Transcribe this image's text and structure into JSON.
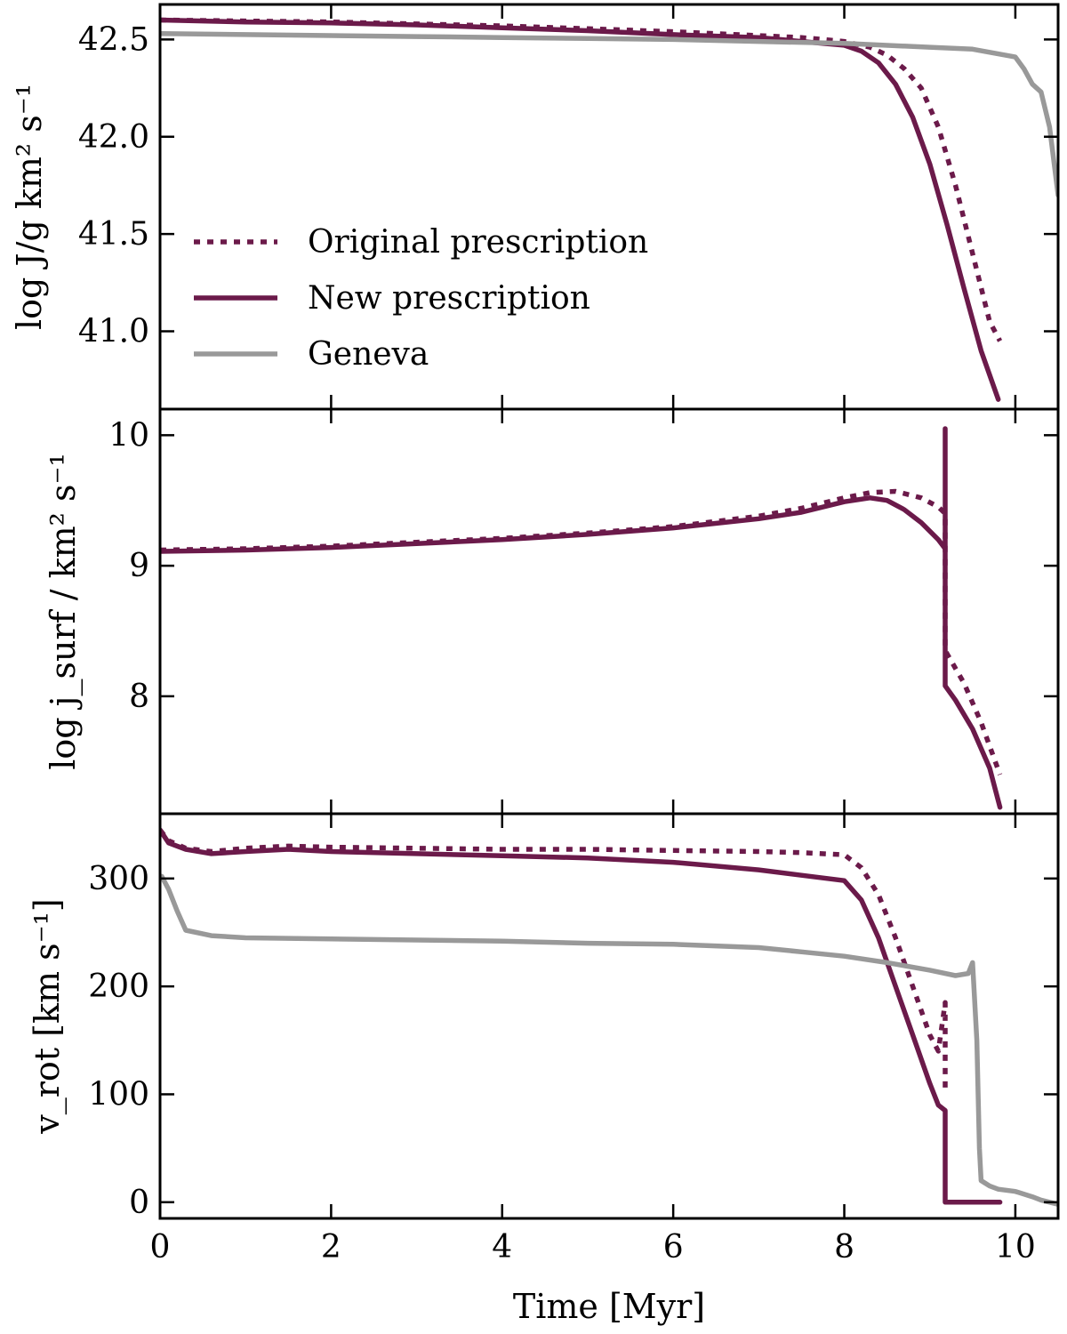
{
  "colors": {
    "purple": "#6b1a4a",
    "gray": "#999999",
    "frame": "#000000"
  },
  "chart_data": [
    {
      "type": "line",
      "ylabel": "log J/g km² s⁻¹",
      "xlim": [
        0,
        10.5
      ],
      "ylim": [
        40.6,
        42.68
      ],
      "yticks": [
        41.0,
        41.5,
        42.0,
        42.5
      ],
      "ytick_labels": [
        "41.0",
        "41.5",
        "42.0",
        "42.5"
      ],
      "legend": {
        "position": "center-left",
        "entries": [
          {
            "label": "Original prescription",
            "style": "dotted",
            "color": "#6b1a4a"
          },
          {
            "label": "New prescription",
            "style": "solid",
            "color": "#6b1a4a"
          },
          {
            "label": "Geneva",
            "style": "solid",
            "color": "#999999"
          }
        ]
      },
      "series": [
        {
          "name": "Original prescription",
          "style": "dotted",
          "color": "#6b1a4a",
          "x": [
            0,
            1,
            2,
            3,
            4,
            5,
            6,
            7,
            7.5,
            8.0,
            8.3,
            8.5,
            8.7,
            8.9,
            9.1,
            9.3,
            9.5,
            9.7,
            9.82
          ],
          "y": [
            42.6,
            42.595,
            42.59,
            42.58,
            42.57,
            42.555,
            42.54,
            42.52,
            42.51,
            42.49,
            42.46,
            42.42,
            42.35,
            42.25,
            42.05,
            41.75,
            41.4,
            41.05,
            40.95
          ]
        },
        {
          "name": "New prescription",
          "style": "solid",
          "color": "#6b1a4a",
          "x": [
            0,
            1,
            2,
            3,
            4,
            5,
            6,
            7,
            7.5,
            8.0,
            8.2,
            8.4,
            8.6,
            8.8,
            9.0,
            9.2,
            9.4,
            9.6,
            9.8
          ],
          "y": [
            42.6,
            42.59,
            42.585,
            42.575,
            42.56,
            42.545,
            42.525,
            42.51,
            42.49,
            42.47,
            42.44,
            42.38,
            42.27,
            42.1,
            41.86,
            41.55,
            41.22,
            40.9,
            40.65
          ]
        },
        {
          "name": "Geneva",
          "style": "solid",
          "color": "#999999",
          "x": [
            0,
            1,
            2,
            3,
            4,
            5,
            6,
            7,
            8,
            9,
            9.5,
            10.0,
            10.1,
            10.2,
            10.3,
            10.4,
            10.5
          ],
          "y": [
            42.53,
            42.525,
            42.52,
            42.515,
            42.51,
            42.505,
            42.5,
            42.49,
            42.48,
            42.46,
            42.45,
            42.41,
            42.35,
            42.27,
            42.23,
            42.05,
            41.7
          ]
        }
      ]
    },
    {
      "type": "line",
      "ylabel": "log j_surf / km² s⁻¹",
      "xlim": [
        0,
        10.5
      ],
      "ylim": [
        7.1,
        10.2
      ],
      "yticks": [
        8,
        9,
        10
      ],
      "ytick_labels": [
        "8",
        "9",
        "10"
      ],
      "series": [
        {
          "name": "Original prescription",
          "style": "dotted",
          "color": "#6b1a4a",
          "x": [
            0,
            1,
            2,
            3,
            4,
            5,
            6,
            7,
            7.5,
            8.0,
            8.3,
            8.6,
            8.9,
            9.1,
            9.18,
            9.18,
            9.4,
            9.6,
            9.82
          ],
          "y": [
            9.12,
            9.13,
            9.15,
            9.18,
            9.21,
            9.25,
            9.3,
            9.38,
            9.44,
            9.52,
            9.56,
            9.57,
            9.52,
            9.45,
            9.4,
            8.35,
            8.1,
            7.8,
            7.4
          ]
        },
        {
          "name": "New prescription",
          "style": "solid",
          "color": "#6b1a4a",
          "x": [
            0,
            1,
            2,
            3,
            4,
            5,
            6,
            7,
            7.5,
            8.0,
            8.3,
            8.5,
            8.7,
            8.9,
            9.1,
            9.18,
            9.18,
            9.18,
            9.18,
            9.3,
            9.5,
            9.7,
            9.82
          ],
          "y": [
            9.11,
            9.12,
            9.14,
            9.17,
            9.2,
            9.24,
            9.29,
            9.36,
            9.41,
            9.49,
            9.52,
            9.5,
            9.43,
            9.33,
            9.2,
            9.13,
            10.05,
            10.05,
            8.08,
            7.97,
            7.75,
            7.45,
            7.15
          ]
        }
      ]
    },
    {
      "type": "line",
      "ylabel": "v_rot [km s⁻¹]",
      "xlabel": "Time [Myr]",
      "xlim": [
        0,
        10.5
      ],
      "xticks": [
        0,
        2,
        4,
        6,
        8,
        10
      ],
      "xtick_labels": [
        "0",
        "2",
        "4",
        "6",
        "8",
        "10"
      ],
      "ylim": [
        -15,
        360
      ],
      "yticks": [
        0,
        100,
        200,
        300
      ],
      "ytick_labels": [
        "0",
        "100",
        "200",
        "300"
      ],
      "series": [
        {
          "name": "Original prescription",
          "style": "dotted",
          "color": "#6b1a4a",
          "x": [
            0,
            0.1,
            0.3,
            0.6,
            1.0,
            1.5,
            2,
            3,
            4,
            5,
            6,
            7,
            7.5,
            8.0,
            8.2,
            8.4,
            8.6,
            8.8,
            9.0,
            9.1,
            9.18,
            9.18
          ],
          "y": [
            345,
            335,
            328,
            325,
            328,
            330,
            329,
            328,
            327,
            327,
            326,
            325,
            324,
            322,
            310,
            285,
            245,
            200,
            155,
            140,
            185,
            100
          ]
        },
        {
          "name": "New prescription",
          "style": "solid",
          "color": "#6b1a4a",
          "x": [
            0,
            0.1,
            0.3,
            0.6,
            1.0,
            1.5,
            2,
            3,
            4,
            5,
            6,
            7,
            7.5,
            8.0,
            8.2,
            8.4,
            8.6,
            8.8,
            9.0,
            9.1,
            9.18,
            9.18,
            9.5,
            9.82
          ],
          "y": [
            345,
            333,
            327,
            323,
            325,
            327,
            325,
            323,
            321,
            319,
            315,
            308,
            303,
            298,
            280,
            245,
            200,
            155,
            110,
            90,
            85,
            0,
            0,
            0
          ]
        },
        {
          "name": "Geneva",
          "style": "solid",
          "color": "#999999",
          "x": [
            0.02,
            0.1,
            0.2,
            0.3,
            0.6,
            1,
            2,
            3,
            4,
            5,
            6,
            7,
            7.5,
            8,
            8.5,
            9,
            9.3,
            9.45,
            9.5,
            9.55,
            9.58,
            9.6,
            9.7,
            9.8,
            10.0,
            10.2,
            10.3,
            10.5
          ],
          "y": [
            302,
            290,
            270,
            252,
            247,
            245,
            244,
            243,
            242,
            240,
            239,
            236,
            232,
            228,
            222,
            215,
            210,
            212,
            222,
            150,
            50,
            20,
            15,
            12,
            10,
            5,
            2,
            -2
          ]
        }
      ]
    }
  ]
}
